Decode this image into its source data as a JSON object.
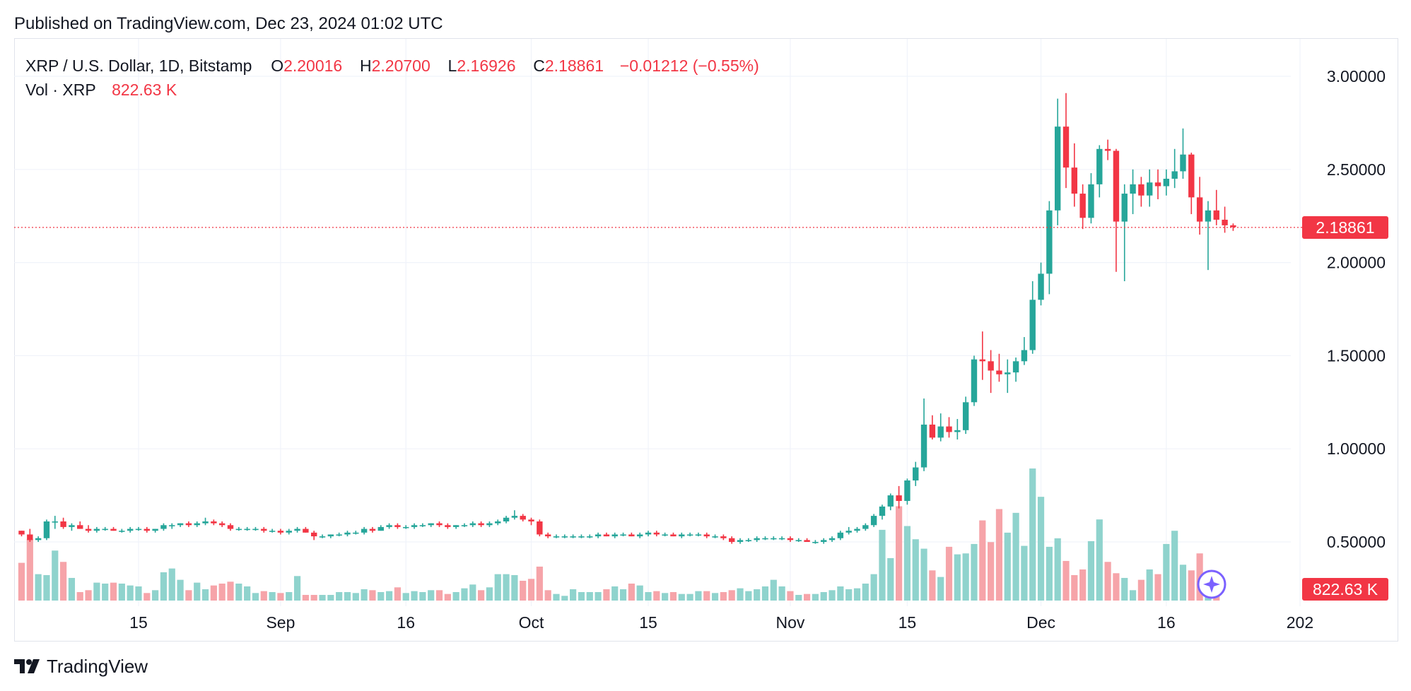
{
  "published": "Published on TradingView.com, Dec 23, 2024 01:02 UTC",
  "legend": {
    "symbol": "XRP / U.S. Dollar, 1D, Bitstamp",
    "o_label": "O",
    "o_value": "2.20016",
    "h_label": "H",
    "h_value": "2.20700",
    "l_label": "L",
    "l_value": "2.16926",
    "c_label": "C",
    "c_value": "2.18861",
    "change": "−0.01212 (−0.55%)",
    "vol_label": "Vol · XRP",
    "vol_value": "822.63 K"
  },
  "price_badge": "2.18861",
  "vol_badge": "822.63 K",
  "footer_brand": "TradingView",
  "colors": {
    "up": "#26a69a",
    "down": "#f23645",
    "up_vol": "#8fd3cd",
    "down_vol": "#f6a4a9",
    "grid": "#f0f3fa"
  },
  "chart_data": {
    "type": "candlestick",
    "symbol": "XRP / U.S. Dollar",
    "interval": "1D",
    "exchange": "Bitstamp",
    "y_ticks": [
      "3.00000",
      "2.50000",
      "2.00000",
      "1.50000",
      "1.00000",
      "0.50000"
    ],
    "ylim": [
      0.2,
      3.15
    ],
    "x_ticks": [
      {
        "label": "15",
        "day": 14
      },
      {
        "label": "Sep",
        "day": 31
      },
      {
        "label": "16",
        "day": 46
      },
      {
        "label": "Oct",
        "day": 61
      },
      {
        "label": "15",
        "day": 75
      },
      {
        "label": "Nov",
        "day": 92
      },
      {
        "label": "15",
        "day": 106
      },
      {
        "label": "Dec",
        "day": 122
      },
      {
        "label": "16",
        "day": 137
      },
      {
        "label": "202",
        "day": 153
      }
    ],
    "first_day": "2024-08-01",
    "last_close": 2.18861,
    "ohlc": [
      [
        0.56,
        0.56,
        0.53,
        0.54
      ],
      [
        0.54,
        0.57,
        0.5,
        0.51
      ],
      [
        0.51,
        0.53,
        0.5,
        0.52
      ],
      [
        0.52,
        0.62,
        0.51,
        0.61
      ],
      [
        0.61,
        0.64,
        0.57,
        0.61
      ],
      [
        0.61,
        0.63,
        0.57,
        0.58
      ],
      [
        0.58,
        0.6,
        0.56,
        0.59
      ],
      [
        0.59,
        0.61,
        0.57,
        0.57
      ],
      [
        0.57,
        0.59,
        0.55,
        0.56
      ],
      [
        0.56,
        0.58,
        0.55,
        0.57
      ],
      [
        0.57,
        0.58,
        0.56,
        0.57
      ],
      [
        0.57,
        0.58,
        0.56,
        0.56
      ],
      [
        0.56,
        0.57,
        0.55,
        0.56
      ],
      [
        0.56,
        0.58,
        0.55,
        0.57
      ],
      [
        0.57,
        0.58,
        0.56,
        0.57
      ],
      [
        0.57,
        0.58,
        0.55,
        0.56
      ],
      [
        0.56,
        0.57,
        0.55,
        0.57
      ],
      [
        0.57,
        0.6,
        0.56,
        0.59
      ],
      [
        0.59,
        0.6,
        0.57,
        0.59
      ],
      [
        0.59,
        0.6,
        0.58,
        0.6
      ],
      [
        0.6,
        0.61,
        0.58,
        0.59
      ],
      [
        0.59,
        0.61,
        0.58,
        0.6
      ],
      [
        0.6,
        0.63,
        0.59,
        0.61
      ],
      [
        0.61,
        0.62,
        0.59,
        0.6
      ],
      [
        0.6,
        0.61,
        0.58,
        0.59
      ],
      [
        0.59,
        0.6,
        0.56,
        0.57
      ],
      [
        0.57,
        0.58,
        0.56,
        0.57
      ],
      [
        0.57,
        0.58,
        0.56,
        0.57
      ],
      [
        0.57,
        0.58,
        0.56,
        0.57
      ],
      [
        0.57,
        0.58,
        0.55,
        0.56
      ],
      [
        0.56,
        0.57,
        0.55,
        0.56
      ],
      [
        0.56,
        0.57,
        0.54,
        0.55
      ],
      [
        0.55,
        0.57,
        0.54,
        0.56
      ],
      [
        0.56,
        0.58,
        0.55,
        0.57
      ],
      [
        0.57,
        0.58,
        0.55,
        0.55
      ],
      [
        0.55,
        0.56,
        0.51,
        0.53
      ],
      [
        0.53,
        0.54,
        0.52,
        0.53
      ],
      [
        0.53,
        0.54,
        0.52,
        0.54
      ],
      [
        0.54,
        0.55,
        0.53,
        0.54
      ],
      [
        0.54,
        0.56,
        0.53,
        0.55
      ],
      [
        0.55,
        0.56,
        0.54,
        0.55
      ],
      [
        0.55,
        0.58,
        0.54,
        0.57
      ],
      [
        0.57,
        0.58,
        0.55,
        0.56
      ],
      [
        0.56,
        0.59,
        0.56,
        0.58
      ],
      [
        0.58,
        0.6,
        0.57,
        0.59
      ],
      [
        0.59,
        0.6,
        0.57,
        0.58
      ],
      [
        0.58,
        0.59,
        0.57,
        0.58
      ],
      [
        0.58,
        0.6,
        0.57,
        0.59
      ],
      [
        0.59,
        0.6,
        0.58,
        0.59
      ],
      [
        0.59,
        0.6,
        0.58,
        0.6
      ],
      [
        0.6,
        0.61,
        0.58,
        0.59
      ],
      [
        0.59,
        0.6,
        0.57,
        0.58
      ],
      [
        0.58,
        0.59,
        0.57,
        0.59
      ],
      [
        0.59,
        0.6,
        0.58,
        0.59
      ],
      [
        0.59,
        0.61,
        0.58,
        0.6
      ],
      [
        0.6,
        0.61,
        0.58,
        0.59
      ],
      [
        0.59,
        0.61,
        0.58,
        0.6
      ],
      [
        0.6,
        0.62,
        0.59,
        0.61
      ],
      [
        0.61,
        0.64,
        0.6,
        0.63
      ],
      [
        0.63,
        0.67,
        0.62,
        0.64
      ],
      [
        0.64,
        0.65,
        0.61,
        0.62
      ],
      [
        0.62,
        0.63,
        0.59,
        0.61
      ],
      [
        0.61,
        0.62,
        0.53,
        0.54
      ],
      [
        0.54,
        0.55,
        0.52,
        0.53
      ],
      [
        0.53,
        0.54,
        0.52,
        0.53
      ],
      [
        0.53,
        0.54,
        0.52,
        0.53
      ],
      [
        0.53,
        0.54,
        0.52,
        0.53
      ],
      [
        0.53,
        0.54,
        0.52,
        0.53
      ],
      [
        0.53,
        0.54,
        0.52,
        0.53
      ],
      [
        0.53,
        0.55,
        0.52,
        0.54
      ],
      [
        0.54,
        0.55,
        0.53,
        0.53
      ],
      [
        0.53,
        0.55,
        0.52,
        0.54
      ],
      [
        0.54,
        0.55,
        0.53,
        0.54
      ],
      [
        0.54,
        0.55,
        0.53,
        0.53
      ],
      [
        0.53,
        0.55,
        0.52,
        0.54
      ],
      [
        0.54,
        0.56,
        0.53,
        0.55
      ],
      [
        0.55,
        0.56,
        0.53,
        0.54
      ],
      [
        0.54,
        0.55,
        0.53,
        0.54
      ],
      [
        0.54,
        0.55,
        0.53,
        0.53
      ],
      [
        0.53,
        0.55,
        0.52,
        0.54
      ],
      [
        0.54,
        0.55,
        0.53,
        0.54
      ],
      [
        0.54,
        0.55,
        0.53,
        0.54
      ],
      [
        0.54,
        0.55,
        0.52,
        0.53
      ],
      [
        0.53,
        0.54,
        0.52,
        0.53
      ],
      [
        0.53,
        0.54,
        0.51,
        0.52
      ],
      [
        0.52,
        0.53,
        0.49,
        0.5
      ],
      [
        0.5,
        0.52,
        0.49,
        0.51
      ],
      [
        0.51,
        0.52,
        0.5,
        0.51
      ],
      [
        0.51,
        0.53,
        0.5,
        0.52
      ],
      [
        0.52,
        0.53,
        0.51,
        0.52
      ],
      [
        0.52,
        0.53,
        0.51,
        0.52
      ],
      [
        0.52,
        0.53,
        0.51,
        0.52
      ],
      [
        0.52,
        0.53,
        0.5,
        0.51
      ],
      [
        0.51,
        0.52,
        0.5,
        0.51
      ],
      [
        0.51,
        0.52,
        0.5,
        0.5
      ],
      [
        0.5,
        0.51,
        0.49,
        0.5
      ],
      [
        0.5,
        0.52,
        0.49,
        0.51
      ],
      [
        0.51,
        0.53,
        0.5,
        0.52
      ],
      [
        0.52,
        0.56,
        0.51,
        0.55
      ],
      [
        0.55,
        0.58,
        0.54,
        0.56
      ],
      [
        0.56,
        0.58,
        0.55,
        0.57
      ],
      [
        0.57,
        0.6,
        0.56,
        0.59
      ],
      [
        0.59,
        0.65,
        0.58,
        0.64
      ],
      [
        0.64,
        0.7,
        0.62,
        0.69
      ],
      [
        0.69,
        0.76,
        0.67,
        0.75
      ],
      [
        0.75,
        0.8,
        0.68,
        0.72
      ],
      [
        0.72,
        0.84,
        0.7,
        0.83
      ],
      [
        0.83,
        0.93,
        0.8,
        0.9
      ],
      [
        0.9,
        1.27,
        0.88,
        1.13
      ],
      [
        1.13,
        1.18,
        1.05,
        1.06
      ],
      [
        1.06,
        1.19,
        1.04,
        1.12
      ],
      [
        1.12,
        1.17,
        1.06,
        1.09
      ],
      [
        1.09,
        1.16,
        1.05,
        1.1
      ],
      [
        1.1,
        1.28,
        1.08,
        1.25
      ],
      [
        1.25,
        1.5,
        1.23,
        1.48
      ],
      [
        1.48,
        1.63,
        1.37,
        1.47
      ],
      [
        1.47,
        1.53,
        1.3,
        1.42
      ],
      [
        1.42,
        1.51,
        1.36,
        1.4
      ],
      [
        1.4,
        1.48,
        1.3,
        1.41
      ],
      [
        1.41,
        1.49,
        1.36,
        1.47
      ],
      [
        1.47,
        1.6,
        1.45,
        1.53
      ],
      [
        1.53,
        1.9,
        1.51,
        1.8
      ],
      [
        1.8,
        2.0,
        1.77,
        1.94
      ],
      [
        1.94,
        2.33,
        1.83,
        2.28
      ],
      [
        2.28,
        2.88,
        2.2,
        2.73
      ],
      [
        2.73,
        2.91,
        2.4,
        2.51
      ],
      [
        2.51,
        2.64,
        2.3,
        2.37
      ],
      [
        2.37,
        2.42,
        2.18,
        2.24
      ],
      [
        2.24,
        2.48,
        2.21,
        2.42
      ],
      [
        2.42,
        2.63,
        2.35,
        2.61
      ],
      [
        2.61,
        2.66,
        2.55,
        2.6
      ],
      [
        2.6,
        2.61,
        1.95,
        2.22
      ],
      [
        2.22,
        2.42,
        1.9,
        2.37
      ],
      [
        2.37,
        2.5,
        2.26,
        2.42
      ],
      [
        2.42,
        2.46,
        2.3,
        2.36
      ],
      [
        2.36,
        2.5,
        2.3,
        2.43
      ],
      [
        2.43,
        2.5,
        2.34,
        2.41
      ],
      [
        2.41,
        2.5,
        2.36,
        2.45
      ],
      [
        2.45,
        2.61,
        2.4,
        2.49
      ],
      [
        2.49,
        2.72,
        2.45,
        2.58
      ],
      [
        2.58,
        2.59,
        2.26,
        2.35
      ],
      [
        2.35,
        2.46,
        2.15,
        2.22
      ],
      [
        2.22,
        2.33,
        1.96,
        2.28
      ],
      [
        2.28,
        2.39,
        2.2,
        2.23
      ],
      [
        2.23,
        2.3,
        2.16,
        2.2
      ],
      [
        2.2,
        2.21,
        2.17,
        2.19
      ]
    ],
    "volume": [
      200,
      325,
      140,
      135,
      265,
      205,
      120,
      45,
      55,
      95,
      90,
      95,
      90,
      80,
      75,
      40,
      55,
      150,
      170,
      110,
      55,
      95,
      60,
      80,
      90,
      100,
      90,
      75,
      40,
      50,
      45,
      40,
      45,
      130,
      30,
      30,
      30,
      30,
      45,
      45,
      40,
      60,
      55,
      45,
      50,
      70,
      40,
      50,
      45,
      55,
      55,
      35,
      45,
      65,
      85,
      55,
      70,
      140,
      140,
      135,
      105,
      115,
      180,
      55,
      35,
      25,
      60,
      45,
      45,
      45,
      60,
      75,
      60,
      90,
      80,
      45,
      50,
      40,
      45,
      35,
      35,
      50,
      50,
      40,
      45,
      55,
      65,
      50,
      60,
      75,
      110,
      75,
      50,
      30,
      35,
      35,
      45,
      55,
      75,
      60,
      65,
      90,
      140,
      375,
      225,
      500,
      395,
      325,
      275,
      160,
      125,
      285,
      245,
      250,
      300,
      425,
      310,
      485,
      360,
      465,
      290,
      700,
      550,
      285,
      330,
      210,
      135,
      165,
      315,
      430,
      205,
      145,
      120,
      55,
      110,
      165,
      140,
      300,
      370,
      190,
      160,
      250,
      85,
      40
    ],
    "last_volume": "822.63 K"
  }
}
